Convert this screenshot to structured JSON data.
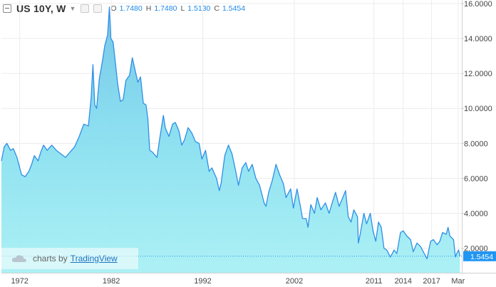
{
  "legend": {
    "symbol": "US 10Y, W",
    "ohlc": [
      {
        "k": "O",
        "v": "1.7480"
      },
      {
        "k": "H",
        "v": "1.7480"
      },
      {
        "k": "L",
        "v": "1.5130"
      },
      {
        "k": "C",
        "v": "1.5454"
      }
    ]
  },
  "watermark": {
    "prefix": "charts by",
    "brand": "TradingView"
  },
  "colors": {
    "line": "#2f8fe6",
    "fill": "#88dff0",
    "last_badge": "#2196f3",
    "grid": "#ececec"
  },
  "chart_data": {
    "type": "area",
    "series": [
      {
        "values": [
          [
            1970.0,
            7.0
          ],
          [
            1970.3,
            7.8
          ],
          [
            1970.6,
            8.0
          ],
          [
            1971.0,
            7.6
          ],
          [
            1971.3,
            7.7
          ],
          [
            1971.7,
            7.2
          ],
          [
            1972.0,
            6.6
          ],
          [
            1972.2,
            6.2
          ],
          [
            1972.6,
            6.1
          ],
          [
            1973.0,
            6.4
          ],
          [
            1973.3,
            6.8
          ],
          [
            1973.6,
            7.3
          ],
          [
            1974.0,
            7.0
          ],
          [
            1974.3,
            7.5
          ],
          [
            1974.6,
            7.9
          ],
          [
            1975.0,
            7.6
          ],
          [
            1975.5,
            7.9
          ],
          [
            1976.0,
            7.6
          ],
          [
            1976.5,
            7.4
          ],
          [
            1977.0,
            7.2
          ],
          [
            1977.5,
            7.5
          ],
          [
            1978.0,
            7.8
          ],
          [
            1978.5,
            8.4
          ],
          [
            1979.0,
            9.1
          ],
          [
            1979.5,
            9.0
          ],
          [
            1979.8,
            10.6
          ],
          [
            1980.0,
            12.5
          ],
          [
            1980.2,
            10.2
          ],
          [
            1980.4,
            10.0
          ],
          [
            1980.7,
            11.7
          ],
          [
            1981.0,
            12.6
          ],
          [
            1981.3,
            13.6
          ],
          [
            1981.6,
            14.2
          ],
          [
            1981.8,
            15.8
          ],
          [
            1981.95,
            14.0
          ],
          [
            1982.2,
            13.8
          ],
          [
            1982.5,
            12.4
          ],
          [
            1982.7,
            11.4
          ],
          [
            1983.0,
            10.4
          ],
          [
            1983.3,
            10.5
          ],
          [
            1983.6,
            11.6
          ],
          [
            1984.0,
            11.9
          ],
          [
            1984.3,
            12.9
          ],
          [
            1984.6,
            12.2
          ],
          [
            1984.9,
            11.5
          ],
          [
            1985.2,
            11.8
          ],
          [
            1985.5,
            10.3
          ],
          [
            1985.8,
            10.2
          ],
          [
            1986.0,
            9.4
          ],
          [
            1986.2,
            7.6
          ],
          [
            1986.5,
            7.5
          ],
          [
            1987.0,
            7.2
          ],
          [
            1987.3,
            8.3
          ],
          [
            1987.7,
            9.6
          ],
          [
            1987.9,
            8.9
          ],
          [
            1988.3,
            8.4
          ],
          [
            1988.7,
            9.1
          ],
          [
            1989.0,
            9.2
          ],
          [
            1989.4,
            8.7
          ],
          [
            1989.7,
            7.9
          ],
          [
            1990.0,
            8.2
          ],
          [
            1990.4,
            8.9
          ],
          [
            1990.8,
            8.6
          ],
          [
            1991.2,
            8.1
          ],
          [
            1991.6,
            8.0
          ],
          [
            1991.9,
            7.1
          ],
          [
            1992.3,
            7.6
          ],
          [
            1992.7,
            6.4
          ],
          [
            1993.0,
            6.6
          ],
          [
            1993.5,
            6.0
          ],
          [
            1993.8,
            5.3
          ],
          [
            1994.0,
            5.7
          ],
          [
            1994.4,
            7.3
          ],
          [
            1994.8,
            7.9
          ],
          [
            1995.2,
            7.4
          ],
          [
            1995.6,
            6.4
          ],
          [
            1995.9,
            5.6
          ],
          [
            1996.3,
            6.6
          ],
          [
            1996.7,
            6.9
          ],
          [
            1997.0,
            6.4
          ],
          [
            1997.4,
            6.8
          ],
          [
            1997.8,
            6.0
          ],
          [
            1998.2,
            5.6
          ],
          [
            1998.7,
            4.6
          ],
          [
            1998.9,
            4.4
          ],
          [
            1999.2,
            5.2
          ],
          [
            1999.6,
            5.9
          ],
          [
            2000.0,
            6.8
          ],
          [
            2000.4,
            6.2
          ],
          [
            2000.8,
            5.7
          ],
          [
            2001.1,
            4.9
          ],
          [
            2001.6,
            5.4
          ],
          [
            2001.9,
            4.3
          ],
          [
            2002.3,
            5.4
          ],
          [
            2002.7,
            4.3
          ],
          [
            2002.9,
            3.7
          ],
          [
            2003.3,
            3.7
          ],
          [
            2003.5,
            3.2
          ],
          [
            2003.8,
            4.5
          ],
          [
            2004.2,
            4.0
          ],
          [
            2004.5,
            4.9
          ],
          [
            2004.9,
            4.2
          ],
          [
            2005.4,
            4.6
          ],
          [
            2005.8,
            4.0
          ],
          [
            2006.2,
            4.7
          ],
          [
            2006.5,
            5.2
          ],
          [
            2006.9,
            4.4
          ],
          [
            2007.3,
            4.9
          ],
          [
            2007.6,
            5.3
          ],
          [
            2007.9,
            3.8
          ],
          [
            2008.2,
            3.5
          ],
          [
            2008.5,
            4.2
          ],
          [
            2008.9,
            3.8
          ],
          [
            2009.0,
            2.3
          ],
          [
            2009.2,
            2.8
          ],
          [
            2009.6,
            4.0
          ],
          [
            2009.9,
            3.4
          ],
          [
            2010.3,
            4.0
          ],
          [
            2010.6,
            3.0
          ],
          [
            2010.9,
            2.4
          ],
          [
            2011.2,
            3.5
          ],
          [
            2011.5,
            3.2
          ],
          [
            2011.8,
            2.0
          ],
          [
            2012.1,
            1.9
          ],
          [
            2012.5,
            1.5
          ],
          [
            2012.9,
            1.9
          ],
          [
            2013.2,
            1.7
          ],
          [
            2013.6,
            2.9
          ],
          [
            2013.9,
            3.0
          ],
          [
            2014.3,
            2.7
          ],
          [
            2014.7,
            2.5
          ],
          [
            2015.0,
            1.8
          ],
          [
            2015.4,
            2.3
          ],
          [
            2015.8,
            2.1
          ],
          [
            2016.2,
            1.7
          ],
          [
            2016.5,
            1.4
          ],
          [
            2016.9,
            2.4
          ],
          [
            2017.2,
            2.5
          ],
          [
            2017.6,
            2.2
          ],
          [
            2017.9,
            2.4
          ],
          [
            2018.2,
            2.9
          ],
          [
            2018.6,
            2.8
          ],
          [
            2018.8,
            3.2
          ],
          [
            2019.0,
            2.7
          ],
          [
            2019.4,
            2.5
          ],
          [
            2019.6,
            1.5
          ],
          [
            2019.75,
            1.7
          ],
          [
            2019.95,
            1.9
          ],
          [
            2020.1,
            1.55
          ]
        ]
      }
    ],
    "xticks": [
      {
        "label": "1972",
        "x": 1972.0
      },
      {
        "label": "1982",
        "x": 1982.0
      },
      {
        "label": "1992",
        "x": 1992.0
      },
      {
        "label": "2002",
        "x": 2002.0
      },
      {
        "label": "2011",
        "x": 2010.7
      },
      {
        "label": "2014",
        "x": 2013.9
      },
      {
        "label": "2017",
        "x": 2017.0
      },
      {
        "label": "Mar",
        "x": 2019.9
      }
    ],
    "yticks": [
      {
        "label": "2.0000",
        "v": 2
      },
      {
        "label": "4.0000",
        "v": 4
      },
      {
        "label": "6.0000",
        "v": 6
      },
      {
        "label": "8.0000",
        "v": 8
      },
      {
        "label": "10.0000",
        "v": 10
      },
      {
        "label": "12.0000",
        "v": 12
      },
      {
        "label": "14.0000",
        "v": 14
      },
      {
        "label": "16.0000",
        "v": 16
      }
    ],
    "xlim": [
      1970.0,
      2020.3
    ],
    "ylim": [
      0.6,
      16.2
    ],
    "last_value": 1.5454,
    "last_value_label": "1.5454",
    "grid": true
  }
}
